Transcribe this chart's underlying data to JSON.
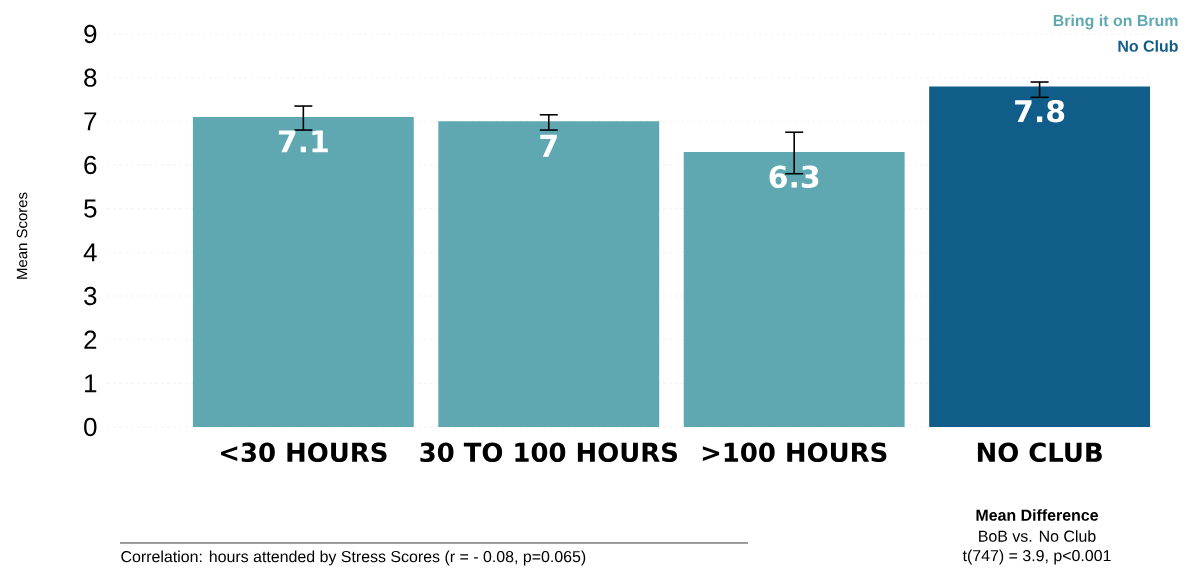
{
  "chart_data": {
    "type": "bar",
    "ylabel": "Mean Scores",
    "categories": [
      "<30 HOURS",
      "30 TO 100 HOURS",
      ">100 HOURS",
      "NO CLUB"
    ],
    "series": [
      {
        "name": "Bring it on Brum",
        "color": "#5fa8b2",
        "values": [
          7.1,
          7,
          6.3,
          null
        ],
        "errors": [
          [
            6.8,
            7.35
          ],
          [
            6.8,
            7.15
          ],
          [
            5.8,
            6.75
          ],
          null
        ]
      },
      {
        "name": "No Club",
        "color": "#115d8a",
        "values": [
          null,
          null,
          null,
          7.8
        ],
        "errors": [
          null,
          null,
          null,
          [
            7.55,
            7.9
          ]
        ]
      }
    ],
    "ylim": [
      0,
      9
    ],
    "yticks": [
      0,
      1,
      2,
      3,
      4,
      5,
      6,
      7,
      8,
      9
    ],
    "grid": "y",
    "legend": "top right",
    "data_labels": true,
    "annotations": [
      "Correlation: hours attended by Stress Scores (r = - 0.08, p=0.065)",
      "Mean Difference",
      "BoB vs. No Club",
      "t(747) = 3.9, p<0.001"
    ]
  }
}
